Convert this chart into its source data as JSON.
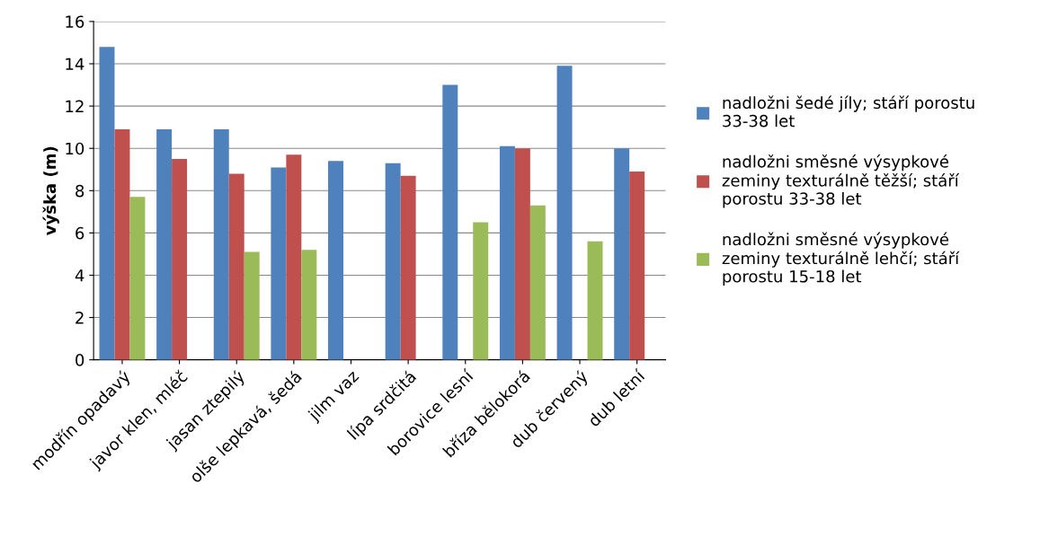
{
  "chart_data": {
    "type": "bar",
    "ylabel": "výška (m)",
    "categories": [
      "modřín opadavý",
      "javor klen, mléč",
      "jasan ztepilý",
      "olše lepkavá, šedá",
      "jilm vaz",
      "lípa srdčitá",
      "borovice lesní",
      "bříza bělokorá",
      "dub červený",
      "dub letní"
    ],
    "series": [
      {
        "name": "nadložni šedé jíly; stáří porostu\n33-38 let",
        "color": "#4f81bd",
        "values": [
          14.8,
          10.9,
          10.9,
          9.1,
          9.4,
          9.3,
          13.0,
          10.1,
          13.9,
          10.0
        ]
      },
      {
        "name": "nadložni směsné výsypkové\nzeminy texturálně těžší; stáří\nporostu 33-38 let",
        "color": "#c0504d",
        "values": [
          10.9,
          9.5,
          8.8,
          9.7,
          null,
          8.7,
          null,
          10.0,
          null,
          8.9
        ]
      },
      {
        "name": "nadložni směsné výsypkové\nzeminy texturálně lehčí; stáří\nporostu 15-18 let",
        "color": "#9bbb59",
        "values": [
          7.7,
          null,
          5.1,
          5.2,
          null,
          null,
          6.5,
          7.3,
          5.6,
          null
        ]
      }
    ],
    "ylim": [
      0,
      16
    ],
    "yticks": [
      0,
      2,
      4,
      6,
      8,
      10,
      12,
      14,
      16
    ],
    "grid": "y",
    "legend": "right"
  }
}
